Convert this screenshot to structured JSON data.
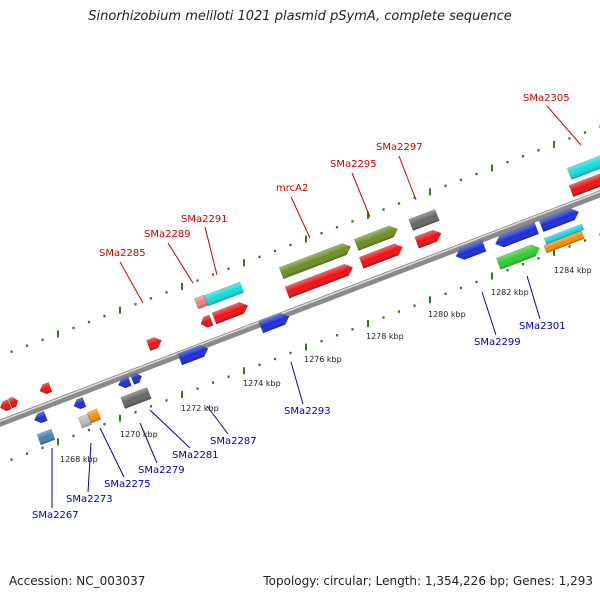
{
  "title": "Sinorhizobium meliloti 1021 plasmid pSymA, complete sequence",
  "footer": {
    "accession": "Accession: NC_003037",
    "summary": "Topology: circular; Length: 1,354,226 bp; Genes: 1,293"
  },
  "colors": {
    "backbone": "#8a8a8a",
    "tick": "#2e7d1a",
    "top_label": "#cc0000",
    "bottom_label": "#0000bb",
    "red": "#ee1111",
    "blue": "#1a2fd6",
    "olive": "#6b8e23",
    "cyan": "#11dddd",
    "gray": "#666666",
    "green": "#33cc33",
    "orange": "#ff8c00",
    "pink": "#f08080",
    "steel": "#4682b4",
    "lightgray": "#bbbbbb"
  },
  "kbp_labels": [
    "1268 kbp",
    "1270 kbp",
    "1272 kbp",
    "1274 kbp",
    "1276 kbp",
    "1278 kbp",
    "1280 kbp",
    "1282 kbp",
    "1284 kbp"
  ],
  "top_genes": [
    "SMa2285",
    "SMa2289",
    "SMa2291",
    "mrcA2",
    "SMa2295",
    "SMa2297",
    "SMa2305"
  ],
  "bottom_genes": [
    "SMa2267",
    "SMa2273",
    "SMa2275",
    "SMa2279",
    "SMa2281",
    "SMa2287",
    "SMa2293",
    "SMa2299",
    "SMa2301"
  ]
}
